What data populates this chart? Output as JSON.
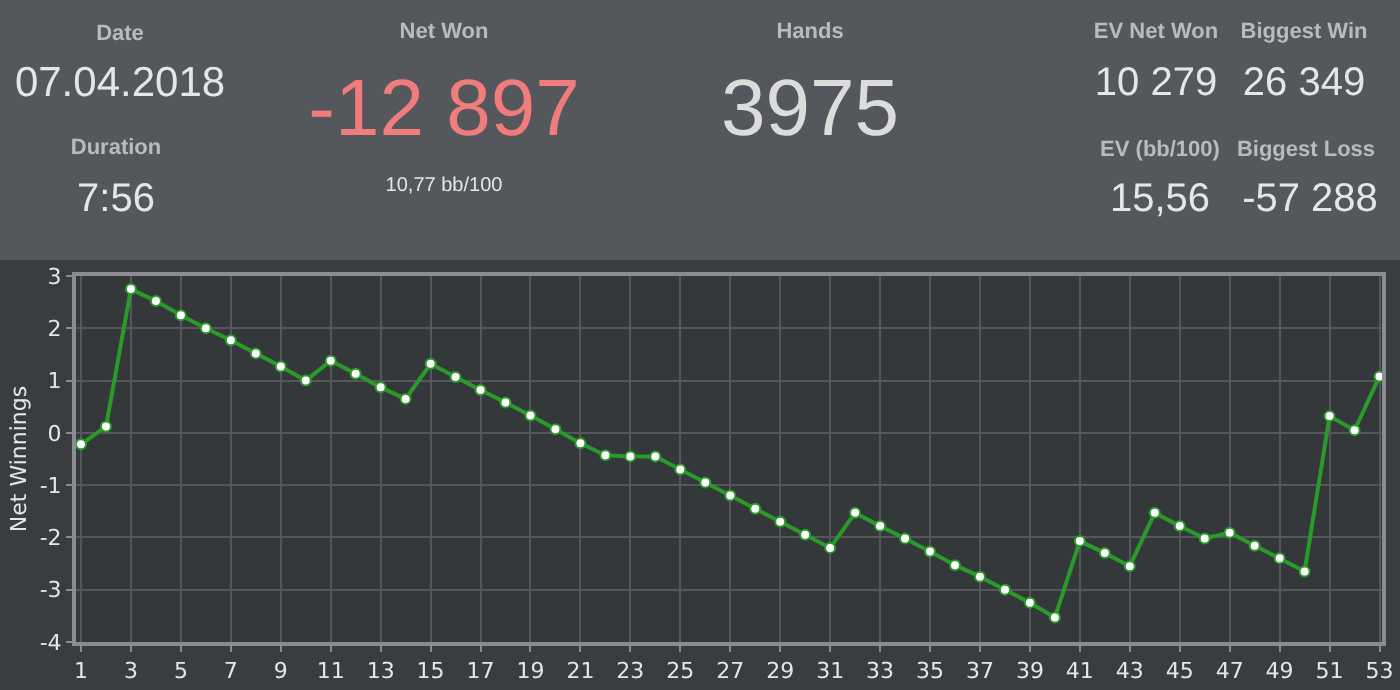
{
  "chart_data": [
    {
      "type": "other",
      "annotations": [
        "Date",
        "07.04.2018",
        "Duration",
        "7:56",
        "Net Won",
        "-12 897",
        "10,77 bb/100",
        "Hands",
        "3975",
        "EV Net Won",
        "10 279",
        "Biggest Win",
        "26 349",
        "EV (bb/100)",
        "15,56",
        "Biggest Loss",
        "-57 288"
      ]
    },
    {
      "type": "line",
      "ylabel": "Net Winnings",
      "x": [
        1,
        2,
        3,
        4,
        5,
        6,
        7,
        8,
        9,
        10,
        11,
        12,
        13,
        14,
        15,
        16,
        17,
        18,
        19,
        20,
        21,
        22,
        23,
        24,
        25,
        26,
        27,
        28,
        29,
        30,
        31,
        32,
        33,
        34,
        35,
        36,
        37,
        38,
        39,
        40,
        41,
        42,
        43,
        44,
        45,
        46,
        47,
        48,
        49,
        50,
        51,
        52,
        53
      ],
      "series": [
        {
          "color": "#2a9a2a",
          "values": [
            -0.22,
            0.12,
            2.75,
            2.52,
            2.25,
            2.0,
            1.77,
            1.52,
            1.27,
            1.0,
            1.38,
            1.13,
            0.87,
            0.65,
            1.32,
            1.07,
            0.82,
            0.58,
            0.33,
            0.07,
            -0.2,
            -0.43,
            -0.45,
            -0.45,
            -0.7,
            -0.95,
            -1.2,
            -1.45,
            -1.7,
            -1.95,
            -2.2,
            -1.53,
            -1.78,
            -2.02,
            -2.27,
            -2.53,
            -2.75,
            -3.0,
            -3.25,
            -3.53,
            -2.07,
            -2.3,
            -2.55,
            -1.53,
            -1.78,
            -2.02,
            -1.91,
            -2.16,
            -2.4,
            -2.65,
            0.32,
            0.05,
            1.08
          ]
        }
      ],
      "xlim": [
        0.8,
        53.1
      ],
      "xticks": [
        1,
        3,
        5,
        7,
        9,
        11,
        13,
        15,
        17,
        19,
        21,
        23,
        25,
        27,
        29,
        31,
        33,
        35,
        37,
        39,
        41,
        43,
        45,
        47,
        49,
        51,
        53
      ],
      "ylim": [
        -4,
        3
      ],
      "yticks": [
        -4,
        -3,
        -2,
        -1,
        0,
        1,
        2,
        3
      ],
      "grid": true,
      "marker": "circle",
      "line_style": "solid"
    }
  ]
}
